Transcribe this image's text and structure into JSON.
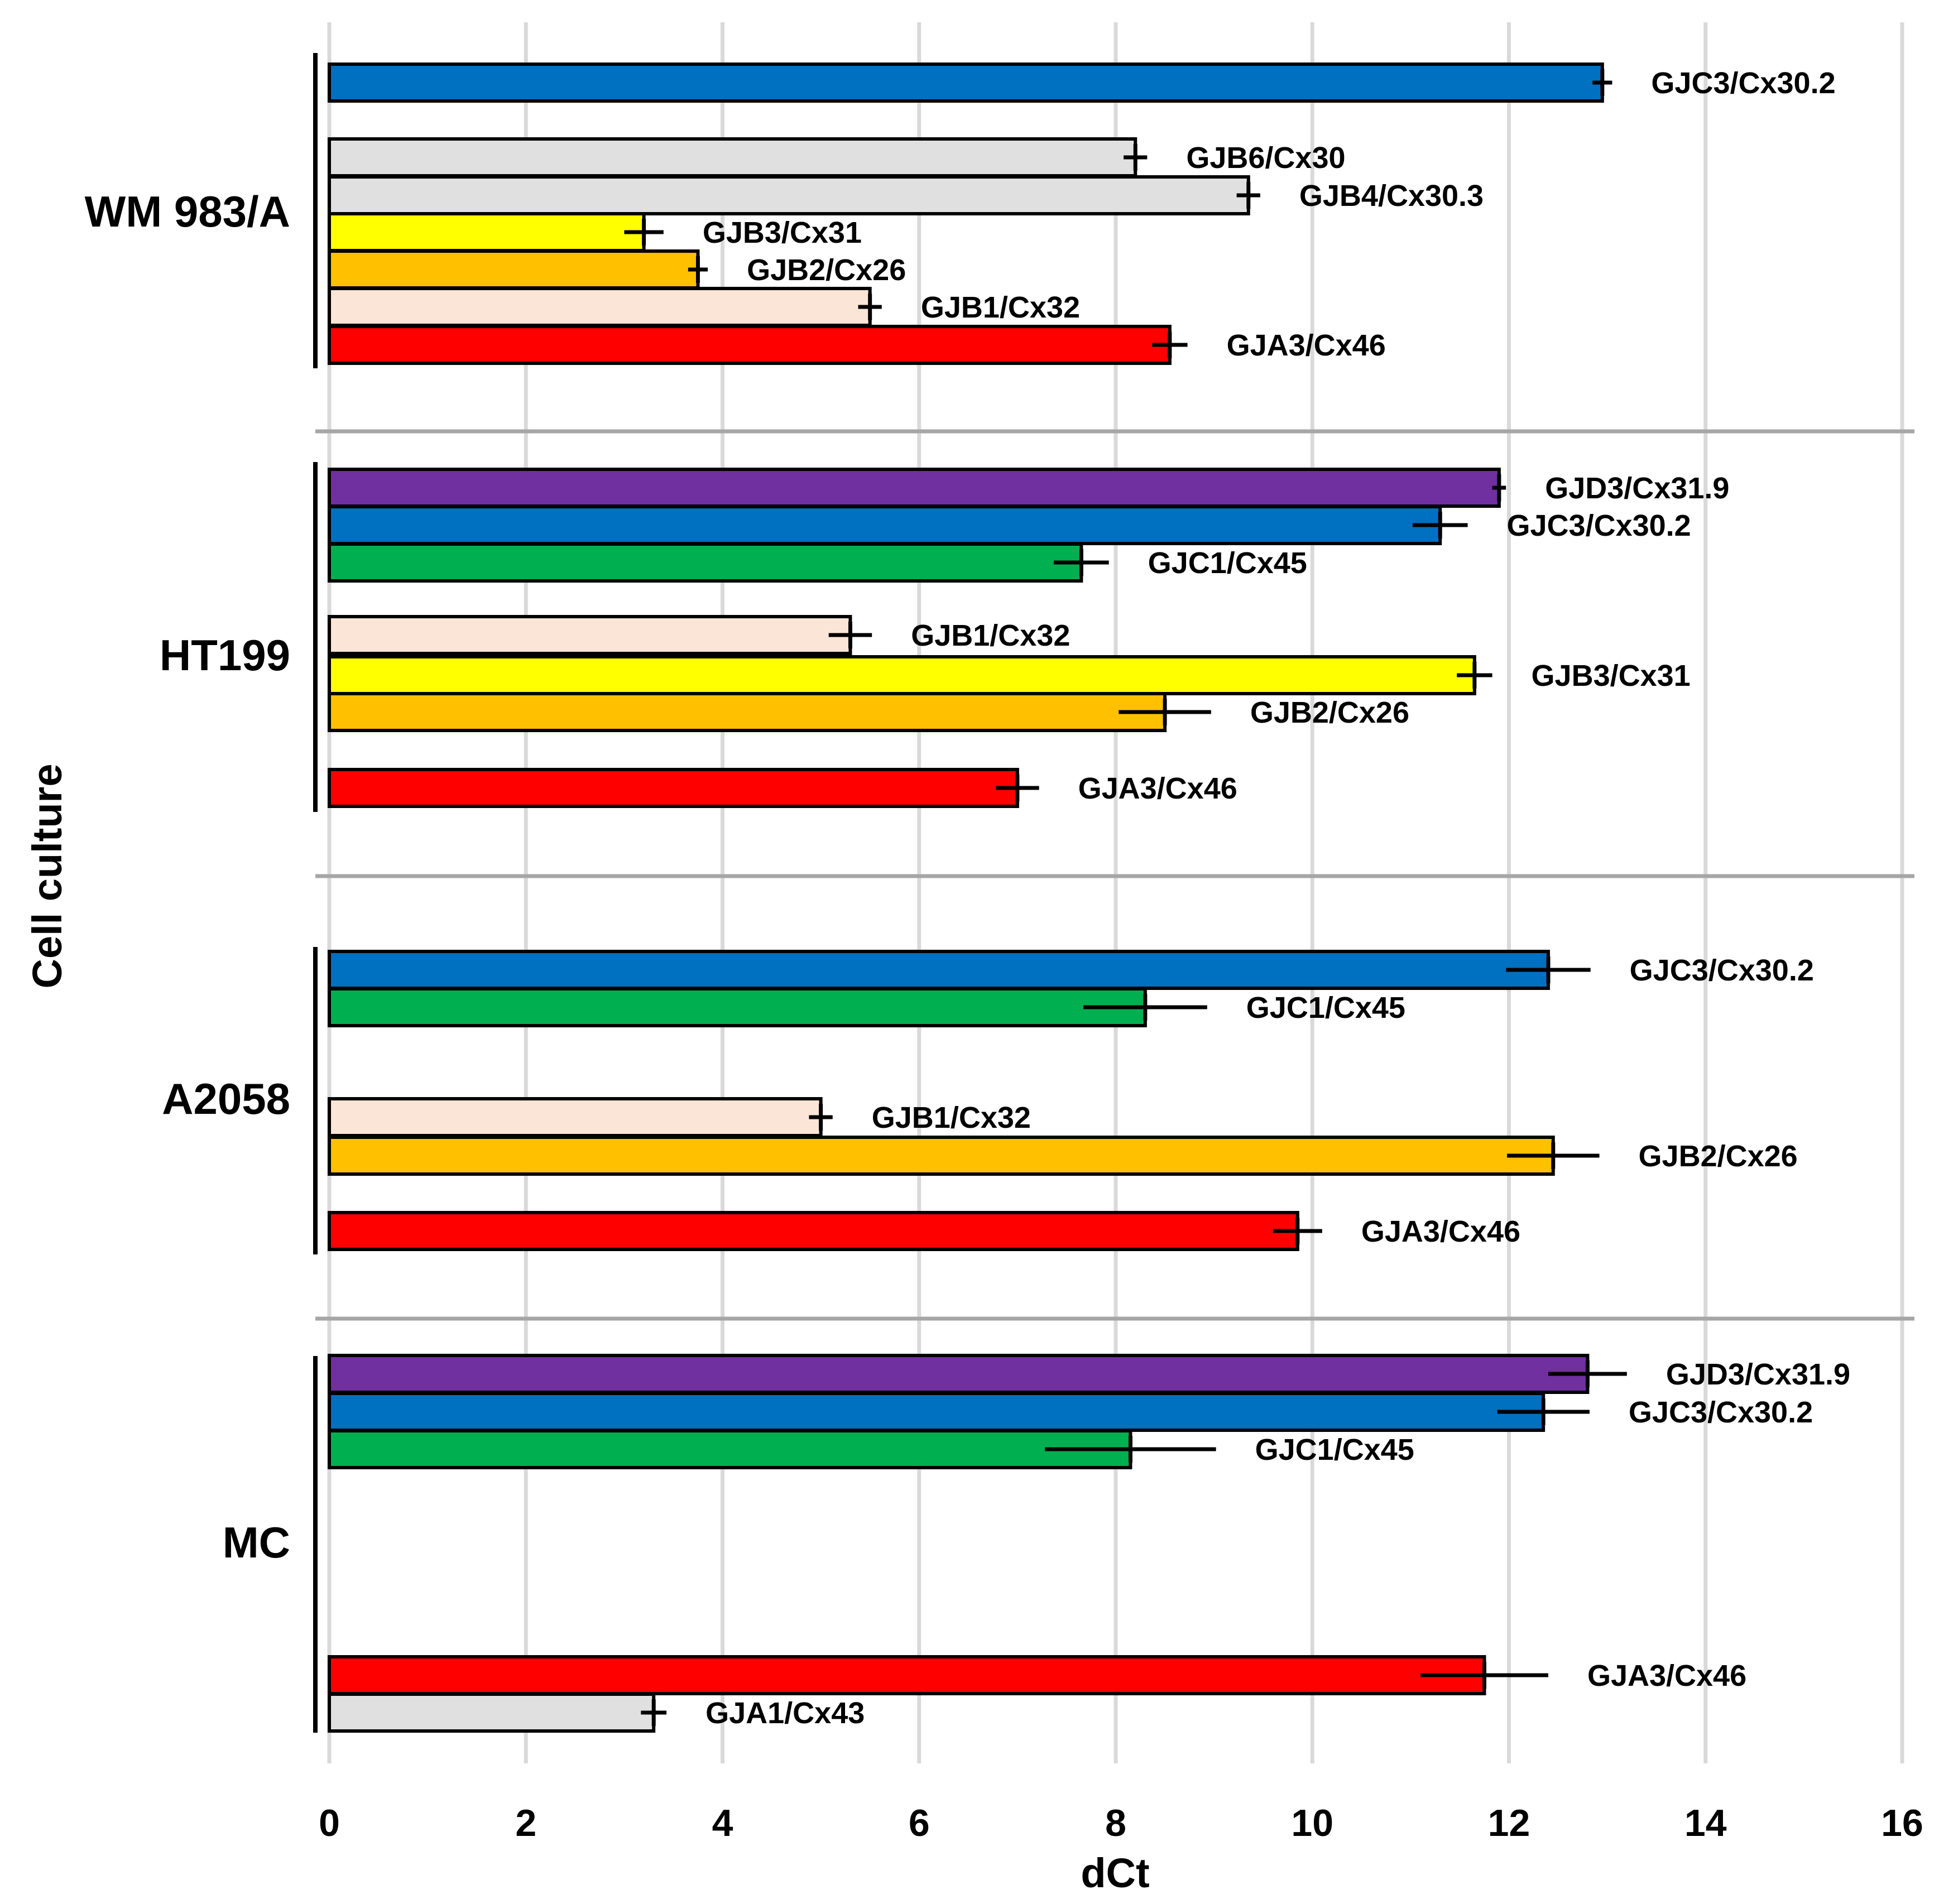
{
  "chart_data": {
    "type": "bar",
    "orientation": "horizontal",
    "xlabel": "dCt",
    "ylabel": "Cell culture",
    "xlim": [
      0,
      16
    ],
    "xticks": [
      "0",
      "2",
      "4",
      "6",
      "8",
      "10",
      "12",
      "14",
      "16"
    ],
    "grid": true,
    "colors": {
      "GJC3": "#0070C0",
      "GJD3": "#7030A0",
      "GJC1": "#00B050",
      "GJB6": "#E0E0E0",
      "GJB4": "#E0E0E0",
      "GJB3": "#FFFF00",
      "GJB2": "#FFC000",
      "GJB1": "#FBE5D6",
      "GJA3": "#FF0000",
      "GJA1": "#E0E0E0"
    },
    "groups": [
      {
        "name": "WM 983/A",
        "bars": [
          {
            "label": "GJC3/Cx30.2",
            "gene": "GJC3",
            "value": 12.95,
            "err": 0.1
          },
          {
            "label": "GJB6/Cx30",
            "gene": "GJB6",
            "value": 8.2,
            "err": 0.12
          },
          {
            "label": "GJB4/Cx30.3",
            "gene": "GJB4",
            "value": 9.35,
            "err": 0.12
          },
          {
            "label": "GJB3/Cx31",
            "gene": "GJB3",
            "value": 3.2,
            "err": 0.2
          },
          {
            "label": "GJB2/Cx26",
            "gene": "GJB2",
            "value": 3.75,
            "err": 0.1
          },
          {
            "label": "GJB1/Cx32",
            "gene": "GJB1",
            "value": 5.5,
            "err": 0.12
          },
          {
            "label": "GJA3/Cx46",
            "gene": "GJA3",
            "value": 8.55,
            "err": 0.18
          }
        ]
      },
      {
        "name": "HT199",
        "bars": [
          {
            "label": "GJD3/Cx31.9",
            "gene": "GJD3",
            "value": 11.9,
            "err": 0.07
          },
          {
            "label": "GJC3/Cx30.2",
            "gene": "GJC3",
            "value": 11.3,
            "err": 0.28
          },
          {
            "label": "GJC1/Cx45",
            "gene": "GJC1",
            "value": 7.65,
            "err": 0.28
          },
          {
            "label": "GJB1/Cx32",
            "gene": "GJB1",
            "value": 5.3,
            "err": 0.22
          },
          {
            "label": "GJB3/Cx31",
            "gene": "GJB3",
            "value": 11.65,
            "err": 0.18
          },
          {
            "label": "GJB2/Cx26",
            "gene": "GJB2",
            "value": 8.5,
            "err": 0.47
          },
          {
            "label": "GJA3/Cx46",
            "gene": "GJA3",
            "value": 7.0,
            "err": 0.22
          }
        ]
      },
      {
        "name": "A2058",
        "bars": [
          {
            "label": "GJC3/Cx30.2",
            "gene": "GJC3",
            "value": 12.4,
            "err": 0.43
          },
          {
            "label": "GJC1/Cx45",
            "gene": "GJC1",
            "value": 8.3,
            "err": 0.63
          },
          {
            "label": "GJB1/Cx32",
            "gene": "GJB1",
            "value": 5.0,
            "err": 0.12
          },
          {
            "label": "GJB2/Cx26",
            "gene": "GJB2",
            "value": 12.45,
            "err": 0.47
          },
          {
            "label": "GJA3/Cx46",
            "gene": "GJA3",
            "value": 9.85,
            "err": 0.25
          }
        ]
      },
      {
        "name": "MC",
        "bars": [
          {
            "label": "GJD3/Cx31.9",
            "gene": "GJD3",
            "value": 12.8,
            "err": 0.4
          },
          {
            "label": "GJC3/Cx30.2",
            "gene": "GJC3",
            "value": 12.35,
            "err": 0.47
          },
          {
            "label": "GJC1/Cx45",
            "gene": "GJC1",
            "value": 8.15,
            "err": 0.87
          },
          {
            "label": "GJA3/Cx46",
            "gene": "GJA3",
            "value": 11.75,
            "err": 0.65
          },
          {
            "label": "GJA1/Cx43",
            "gene": "GJA1",
            "value": 3.3,
            "err": 0.13
          }
        ]
      }
    ]
  }
}
